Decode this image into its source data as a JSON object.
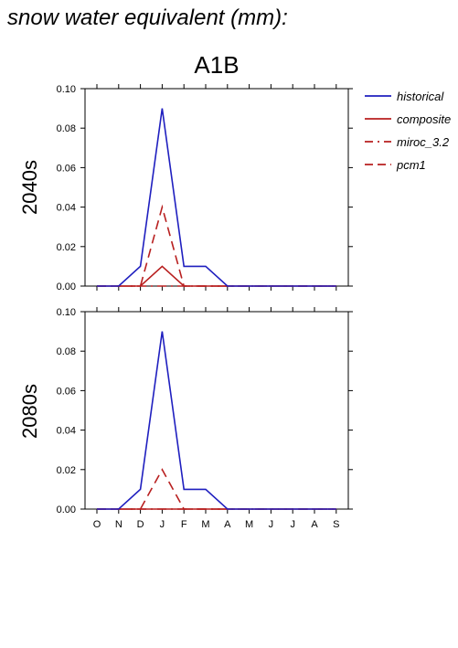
{
  "page_title": "snow water equivalent (mm):",
  "scenario": "A1B",
  "colors": {
    "historical": "#1f1fbf",
    "future": "#b81f1f",
    "axis": "#000000"
  },
  "chart_data": [
    {
      "type": "line",
      "row_label": "2040s",
      "categories": [
        "O",
        "N",
        "D",
        "J",
        "F",
        "M",
        "A",
        "M",
        "J",
        "J",
        "A",
        "S"
      ],
      "ylim": [
        0,
        0.1
      ],
      "yticks": [
        "0.00",
        "0.02",
        "0.04",
        "0.06",
        "0.08",
        "0.10"
      ],
      "grid": false,
      "series": [
        {
          "name": "historical",
          "style": "solid",
          "color": "#1f1fbf",
          "values": [
            0,
            0,
            0.01,
            0.09,
            0.01,
            0.01,
            0,
            0,
            0,
            0,
            0,
            0
          ]
        },
        {
          "name": "composite",
          "style": "solid",
          "color": "#b81f1f",
          "values": [
            0,
            0,
            0,
            0.01,
            0,
            0,
            0,
            0,
            0,
            0,
            0,
            0
          ]
        },
        {
          "name": "miroc_3.2",
          "style": "dashdot",
          "color": "#b81f1f",
          "values": [
            0,
            0,
            0,
            0,
            0,
            0,
            0,
            0,
            0,
            0,
            0,
            0
          ]
        },
        {
          "name": "pcm1",
          "style": "dashed",
          "color": "#b81f1f",
          "values": [
            0,
            0,
            0,
            0.04,
            0,
            0,
            0,
            0,
            0,
            0,
            0,
            0
          ]
        }
      ]
    },
    {
      "type": "line",
      "row_label": "2080s",
      "categories": [
        "O",
        "N",
        "D",
        "J",
        "F",
        "M",
        "A",
        "M",
        "J",
        "J",
        "A",
        "S"
      ],
      "ylim": [
        0,
        0.1
      ],
      "yticks": [
        "0.00",
        "0.02",
        "0.04",
        "0.06",
        "0.08",
        "0.10"
      ],
      "grid": false,
      "series": [
        {
          "name": "historical",
          "style": "solid",
          "color": "#1f1fbf",
          "values": [
            0,
            0,
            0.01,
            0.09,
            0.01,
            0.01,
            0,
            0,
            0,
            0,
            0,
            0
          ]
        },
        {
          "name": "composite",
          "style": "solid",
          "color": "#b81f1f",
          "values": [
            0,
            0,
            0,
            0,
            0,
            0,
            0,
            0,
            0,
            0,
            0,
            0
          ]
        },
        {
          "name": "miroc_3.2",
          "style": "dashdot",
          "color": "#b81f1f",
          "values": [
            0,
            0,
            0,
            0,
            0,
            0,
            0,
            0,
            0,
            0,
            0,
            0
          ]
        },
        {
          "name": "pcm1",
          "style": "dashed",
          "color": "#b81f1f",
          "values": [
            0,
            0,
            0,
            0.02,
            0,
            0,
            0,
            0,
            0,
            0,
            0,
            0
          ]
        }
      ]
    }
  ],
  "legend": {
    "placement": "right",
    "entries": [
      {
        "label": "historical",
        "style": "solid",
        "color": "#1f1fbf"
      },
      {
        "label": "composite",
        "style": "solid",
        "color": "#b81f1f"
      },
      {
        "label": "miroc_3.2",
        "style": "dashdot",
        "color": "#b81f1f"
      },
      {
        "label": "pcm1",
        "style": "dashed",
        "color": "#b81f1f"
      }
    ]
  }
}
